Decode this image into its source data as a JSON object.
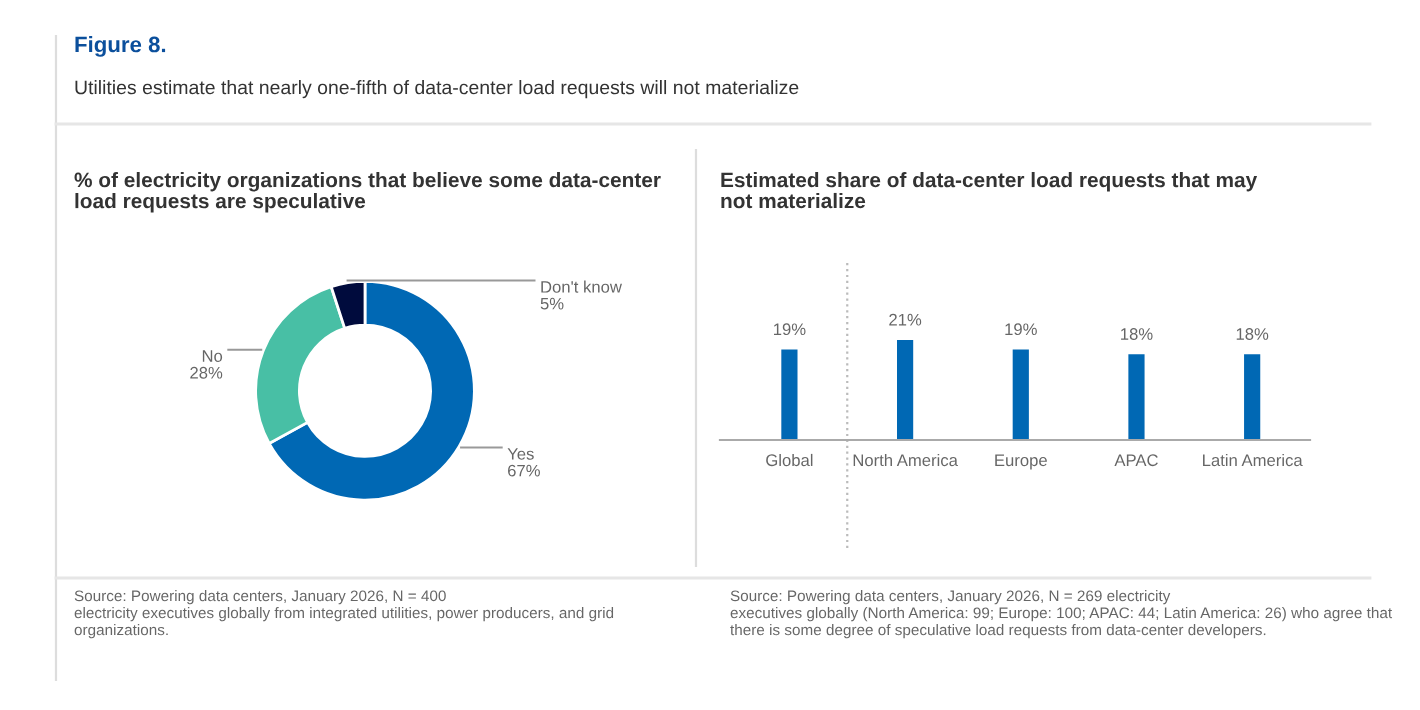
{
  "chart_data": [
    {
      "type": "donut",
      "title": "% of electricity organizations that believe some data-center\nload requests are speculative",
      "categories": [
        "Yes",
        "No",
        "Don't know"
      ],
      "values": [
        67,
        28,
        5
      ],
      "colors": [
        "#0068b4",
        "#48bfa5",
        "#000b3d"
      ],
      "value_labels": [
        "67%",
        "28%",
        "5%"
      ],
      "legend": false,
      "annotations": [
        "Figure 8.",
        "Utilities estimate that nearly one-fifth of data-center load requests will not materialize",
        "Source: Powering data centers, January 2026, N = 400\nelectricity executives globally from integrated utilities, power producers, and grid\norganizations."
      ]
    },
    {
      "type": "bar",
      "title": "Estimated share of data-center load requests that may\nnot materialize",
      "categories": [
        "Global",
        "North America",
        "Europe",
        "APAC",
        "Latin America"
      ],
      "values": [
        19,
        21,
        19,
        18,
        18
      ],
      "color": "#0068b4",
      "value_labels": [
        "19%",
        "21%",
        "19%",
        "18%",
        "18%"
      ],
      "tick_labels": "x",
      "grid": false,
      "legend": false,
      "annotations": [
        "Source: Powering data centers, January 2026, N = 269 electricity\nexecutives globally (North America: 99; Europe: 100; APAC: 44; Latin America: 26) who agree that\nthere is some degree of speculative load requests from data-center developers."
      ]
    }
  ]
}
